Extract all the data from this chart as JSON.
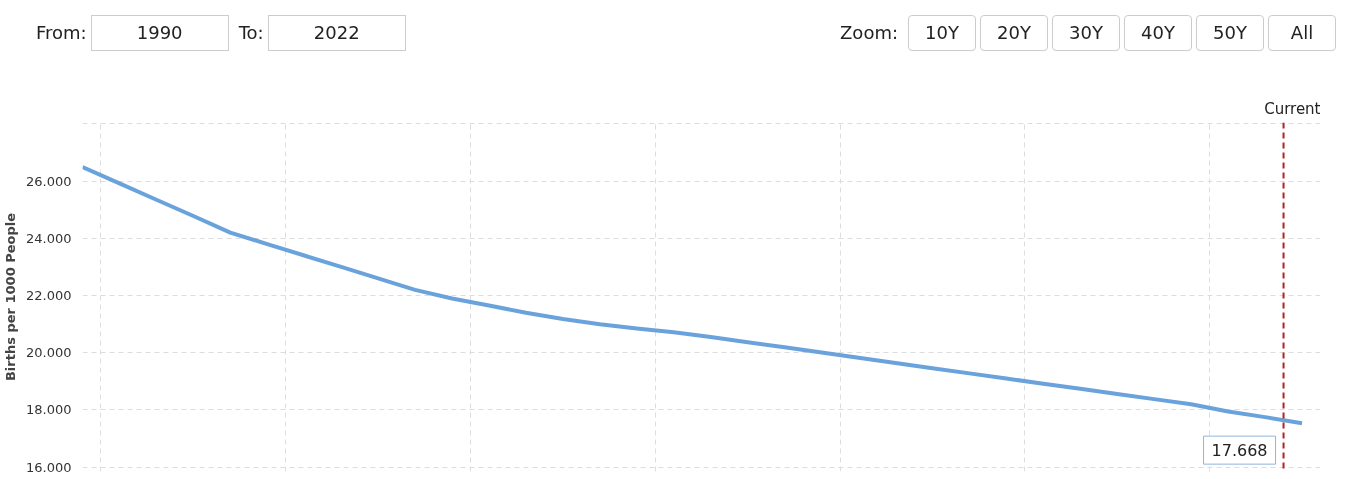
{
  "chart_data": {
    "type": "line",
    "ylabel": "Births per 1000 People",
    "categories": [
      null,
      null,
      null,
      null,
      null,
      null,
      null,
      null,
      null,
      null,
      null,
      null,
      null,
      null,
      null,
      null,
      null,
      null,
      null,
      null,
      null,
      null,
      null,
      null,
      null,
      null,
      null,
      null,
      null,
      null,
      null,
      null,
      null,
      null
    ],
    "series": [
      {
        "color": "#6aa3dc",
        "values": [
          26.49,
          25.92,
          25.35,
          24.78,
          24.2,
          23.8,
          23.4,
          23.0,
          22.6,
          22.2,
          21.9,
          21.65,
          21.4,
          21.18,
          21.0,
          20.85,
          20.72,
          20.55,
          20.37,
          20.19,
          20.01,
          19.83,
          19.64,
          19.46,
          19.28,
          19.1,
          18.92,
          18.74,
          18.56,
          18.38,
          18.2,
          17.95,
          17.75,
          17.54
        ]
      }
    ],
    "ylim": [
      15.85,
      28.05
    ],
    "yticks": [
      {
        "value": 16,
        "label": "16.000"
      },
      {
        "value": 18,
        "label": "18.000"
      },
      {
        "value": 20,
        "label": "20.000"
      },
      {
        "value": 22,
        "label": "22.000"
      },
      {
        "value": 24,
        "label": "24.000"
      },
      {
        "value": 26,
        "label": "26.000"
      },
      {
        "value": 28,
        "label": null
      }
    ],
    "tick_labels": "y",
    "grid": true,
    "marker": "none",
    "line_style": "solid",
    "annotations": [
      "From:",
      "1990",
      "To:",
      "2022",
      "Zoom:",
      "10Y",
      "20Y",
      "30Y",
      "40Y",
      "50Y",
      "All",
      "Current",
      "17.668"
    ]
  }
}
